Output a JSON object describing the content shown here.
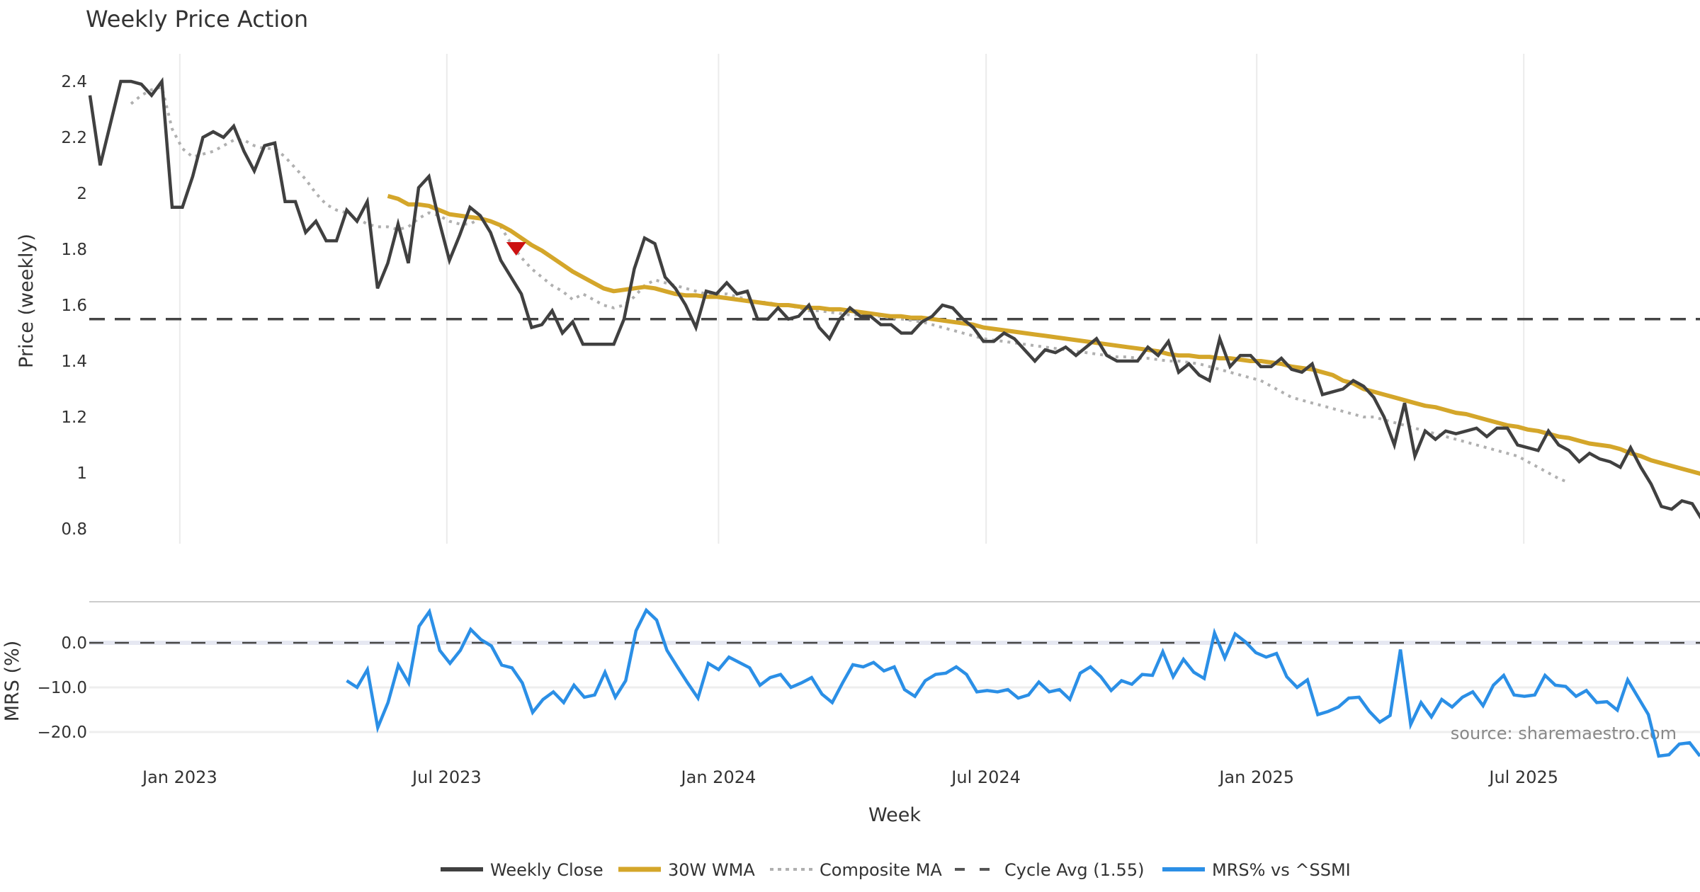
{
  "chart_data": {
    "type": "line",
    "title": "Weekly Price Action",
    "source_note": "source: sharemaestro.com",
    "x": {
      "label": "Week",
      "interval": "weekly",
      "first_week": "2022-11-07",
      "ticks": [
        {
          "label": "Jan 2023",
          "week_index": 8.75
        },
        {
          "label": "Jul 2023",
          "week_index": 34.75
        },
        {
          "label": "Jan 2024",
          "week_index": 61.2
        },
        {
          "label": "Jul 2024",
          "week_index": 87.25
        },
        {
          "label": "Jan 2025",
          "week_index": 113.6
        },
        {
          "label": "Jul 2025",
          "week_index": 139.6
        }
      ],
      "range_week_index": [
        0,
        157
      ]
    },
    "price_panel": {
      "ylabel": "Price (weekly)",
      "ylim": [
        0.75,
        2.55
      ],
      "yticks": [
        {
          "value": 2.4,
          "label": "2.4"
        },
        {
          "value": 2.2,
          "label": "2.2"
        },
        {
          "value": 2.0,
          "label": "2"
        },
        {
          "value": 1.8,
          "label": "1.8"
        },
        {
          "value": 1.6,
          "label": "1.6"
        },
        {
          "value": 1.4,
          "label": "1.4"
        },
        {
          "value": 1.2,
          "label": "1.2"
        },
        {
          "value": 1.0,
          "label": "1"
        },
        {
          "value": 0.8,
          "label": "0.8"
        }
      ],
      "grid": "vertical",
      "series": [
        {
          "name": "Weekly Close",
          "color": "#404040",
          "style": "solid",
          "start_index": 0,
          "values": [
            2.35,
            2.1,
            2.25,
            2.4,
            2.4,
            2.39,
            2.35,
            2.4,
            1.95,
            1.95,
            2.06,
            2.2,
            2.22,
            2.2,
            2.24,
            2.15,
            2.08,
            2.17,
            2.18,
            1.97,
            1.97,
            1.86,
            1.9,
            1.83,
            1.83,
            1.94,
            1.9,
            1.97,
            1.66,
            1.75,
            1.89,
            1.75,
            2.02,
            2.06,
            1.9,
            1.76,
            1.85,
            1.95,
            1.92,
            1.86,
            1.76,
            1.7,
            1.64,
            1.52,
            1.53,
            1.58,
            1.5,
            1.54,
            1.46,
            1.46,
            1.46,
            1.46,
            1.55,
            1.73,
            1.84,
            1.82,
            1.7,
            1.66,
            1.6,
            1.52,
            1.65,
            1.64,
            1.68,
            1.64,
            1.65,
            1.55,
            1.55,
            1.59,
            1.55,
            1.56,
            1.6,
            1.52,
            1.48,
            1.55,
            1.59,
            1.56,
            1.56,
            1.53,
            1.53,
            1.5,
            1.5,
            1.54,
            1.56,
            1.6,
            1.59,
            1.55,
            1.52,
            1.47,
            1.47,
            1.5,
            1.48,
            1.44,
            1.4,
            1.44,
            1.43,
            1.45,
            1.42,
            1.45,
            1.48,
            1.42,
            1.4,
            1.4,
            1.4,
            1.45,
            1.42,
            1.47,
            1.36,
            1.39,
            1.35,
            1.33,
            1.48,
            1.38,
            1.42,
            1.42,
            1.38,
            1.38,
            1.41,
            1.37,
            1.36,
            1.39,
            1.28,
            1.29,
            1.3,
            1.33,
            1.31,
            1.27,
            1.2,
            1.1,
            1.25,
            1.06,
            1.15,
            1.12,
            1.15,
            1.14,
            1.15,
            1.16,
            1.13,
            1.16,
            1.16,
            1.1,
            1.09,
            1.08,
            1.15,
            1.1,
            1.08,
            1.04,
            1.07,
            1.05,
            1.04,
            1.02,
            1.09,
            1.02,
            0.96,
            0.88,
            0.87,
            0.9,
            0.89,
            0.83
          ]
        },
        {
          "name": "30W WMA",
          "color": "#D4A62A",
          "style": "solid",
          "start_index": 29,
          "values": [
            1.99,
            1.98,
            1.96,
            1.96,
            1.955,
            1.94,
            1.925,
            1.92,
            1.915,
            1.91,
            1.9,
            1.885,
            1.865,
            1.84,
            1.815,
            1.795,
            1.77,
            1.745,
            1.72,
            1.7,
            1.68,
            1.66,
            1.65,
            1.655,
            1.66,
            1.665,
            1.66,
            1.65,
            1.64,
            1.635,
            1.635,
            1.63,
            1.63,
            1.625,
            1.62,
            1.615,
            1.61,
            1.605,
            1.6,
            1.6,
            1.595,
            1.59,
            1.59,
            1.585,
            1.585,
            1.58,
            1.575,
            1.57,
            1.565,
            1.56,
            1.56,
            1.555,
            1.555,
            1.55,
            1.545,
            1.54,
            1.535,
            1.53,
            1.52,
            1.515,
            1.51,
            1.505,
            1.5,
            1.495,
            1.49,
            1.485,
            1.48,
            1.475,
            1.47,
            1.465,
            1.46,
            1.455,
            1.45,
            1.445,
            1.44,
            1.435,
            1.425,
            1.42,
            1.42,
            1.415,
            1.415,
            1.41,
            1.41,
            1.405,
            1.4,
            1.4,
            1.395,
            1.39,
            1.38,
            1.375,
            1.37,
            1.36,
            1.35,
            1.33,
            1.32,
            1.3,
            1.29,
            1.28,
            1.27,
            1.26,
            1.25,
            1.24,
            1.235,
            1.225,
            1.215,
            1.21,
            1.2,
            1.19,
            1.18,
            1.17,
            1.165,
            1.155,
            1.15,
            1.14,
            1.13,
            1.125,
            1.115,
            1.105,
            1.1,
            1.095,
            1.085,
            1.07,
            1.06,
            1.045,
            1.035,
            1.025,
            1.015,
            1.005,
            0.995
          ]
        },
        {
          "name": "Composite MA",
          "color": "#B0B0B0",
          "style": "dotted",
          "start_index": 4,
          "values": [
            2.32,
            2.35,
            2.37,
            2.38,
            2.23,
            2.16,
            2.13,
            2.14,
            2.15,
            2.17,
            2.19,
            2.19,
            2.17,
            2.16,
            2.16,
            2.13,
            2.09,
            2.05,
            2.0,
            1.96,
            1.94,
            1.93,
            1.91,
            1.89,
            1.88,
            1.88,
            1.87,
            1.88,
            1.91,
            1.93,
            1.92,
            1.9,
            1.89,
            1.89,
            1.91,
            1.9,
            1.88,
            1.82,
            1.77,
            1.73,
            1.7,
            1.67,
            1.65,
            1.62,
            1.64,
            1.62,
            1.6,
            1.59,
            1.6,
            1.63,
            1.67,
            1.69,
            1.68,
            1.67,
            1.66,
            1.65,
            1.64,
            1.64,
            1.64,
            1.63,
            1.62,
            1.61,
            1.61,
            1.6,
            1.6,
            1.59,
            1.58,
            1.58,
            1.575,
            1.57,
            1.565,
            1.565,
            1.56,
            1.56,
            1.555,
            1.55,
            1.545,
            1.54,
            1.53,
            1.52,
            1.51,
            1.5,
            1.49,
            1.48,
            1.475,
            1.47,
            1.465,
            1.46,
            1.455,
            1.45,
            1.445,
            1.44,
            1.435,
            1.43,
            1.425,
            1.42,
            1.415,
            1.415,
            1.41,
            1.41,
            1.405,
            1.4,
            1.4,
            1.395,
            1.39,
            1.38,
            1.37,
            1.36,
            1.35,
            1.34,
            1.33,
            1.31,
            1.29,
            1.27,
            1.26,
            1.25,
            1.24,
            1.23,
            1.22,
            1.21,
            1.2,
            1.2,
            1.19,
            1.18,
            1.17,
            1.16,
            1.15,
            1.14,
            1.13,
            1.12,
            1.11,
            1.1,
            1.09,
            1.08,
            1.07,
            1.06,
            1.04,
            1.02,
            1.0,
            0.98,
            0.965
          ]
        }
      ],
      "reference_line": {
        "name": "Cycle Avg (1.55)",
        "value": 1.55,
        "color": "#444444",
        "style": "dashed"
      },
      "annotations": [
        {
          "type": "sell-signal-marker",
          "shape": "down-triangle",
          "color": "#CC1111",
          "week_index": 41.5,
          "value": 1.8
        }
      ]
    },
    "mrs_panel": {
      "ylabel": "MRS (%)",
      "ylim": [
        -27,
        9
      ],
      "yticks": [
        {
          "value": 0,
          "label": "0.0"
        },
        {
          "value": -10,
          "label": "−10.0"
        },
        {
          "value": -20,
          "label": "−20.0"
        }
      ],
      "grid": "horizontal",
      "reference_line": {
        "value": 0,
        "color": "#444444",
        "style": "dashed"
      },
      "series": [
        {
          "name": "MRS% vs ^SSMI",
          "color": "#2B8FE6",
          "style": "solid",
          "start_index": 25,
          "values": [
            -8.5,
            -10,
            -6,
            -19,
            -13.4,
            -5,
            -9,
            3.7,
            7,
            -1.7,
            -4.6,
            -1.7,
            3,
            0.7,
            -0.7,
            -5,
            -5.6,
            -9,
            -15.6,
            -12.7,
            -11,
            -13.4,
            -9.5,
            -12.2,
            -11.7,
            -6.6,
            -12.2,
            -8.5,
            2.7,
            7.3,
            5.1,
            -1.7,
            -5.4,
            -9,
            -12.4,
            -4.6,
            -6,
            -3.2,
            -4.4,
            -5.6,
            -9.5,
            -7.8,
            -7.1,
            -10,
            -9,
            -7.8,
            -11.5,
            -13.4,
            -9,
            -4.9,
            -5.4,
            -4.4,
            -6.3,
            -5.4,
            -10.5,
            -12,
            -8.5,
            -7.1,
            -6.8,
            -5.4,
            -7.1,
            -11,
            -10.7,
            -11,
            -10.5,
            -12.4,
            -11.7,
            -8.8,
            -11,
            -10.5,
            -12.7,
            -6.8,
            -5.4,
            -7.6,
            -10.7,
            -8.5,
            -9.3,
            -7.1,
            -7.3,
            -2,
            -7.6,
            -3.7,
            -6.6,
            -8,
            2.2,
            -3.4,
            2,
            0.2,
            -2.2,
            -3.2,
            -2.4,
            -7.6,
            -10,
            -8.3,
            -16.1,
            -15.4,
            -14.4,
            -12.4,
            -12.2,
            -15.4,
            -17.8,
            -16.3,
            -1.5,
            -18.3,
            -13.4,
            -16.6,
            -12.7,
            -14.4,
            -12.2,
            -11,
            -14.1,
            -9.5,
            -7.3,
            -11.7,
            -12,
            -11.7,
            -7.3,
            -9.5,
            -9.8,
            -12,
            -10.7,
            -13.4,
            -13.2,
            -15.1,
            -8.3,
            -12.2,
            -16.1,
            -25.4,
            -25.1,
            -22.7,
            -22.4,
            -25.4
          ]
        }
      ]
    },
    "legend": {
      "placement": "bottom-center",
      "entries": [
        {
          "label": "Weekly Close",
          "color": "#404040",
          "style": "solid"
        },
        {
          "label": "30W WMA",
          "color": "#D4A62A",
          "style": "solid"
        },
        {
          "label": "Composite MA",
          "color": "#B0B0B0",
          "style": "dotted"
        },
        {
          "label": "Cycle Avg (1.55)",
          "color": "#555555",
          "style": "dashed"
        },
        {
          "label": "MRS% vs ^SSMI",
          "color": "#2B8FE6",
          "style": "solid"
        }
      ]
    }
  }
}
